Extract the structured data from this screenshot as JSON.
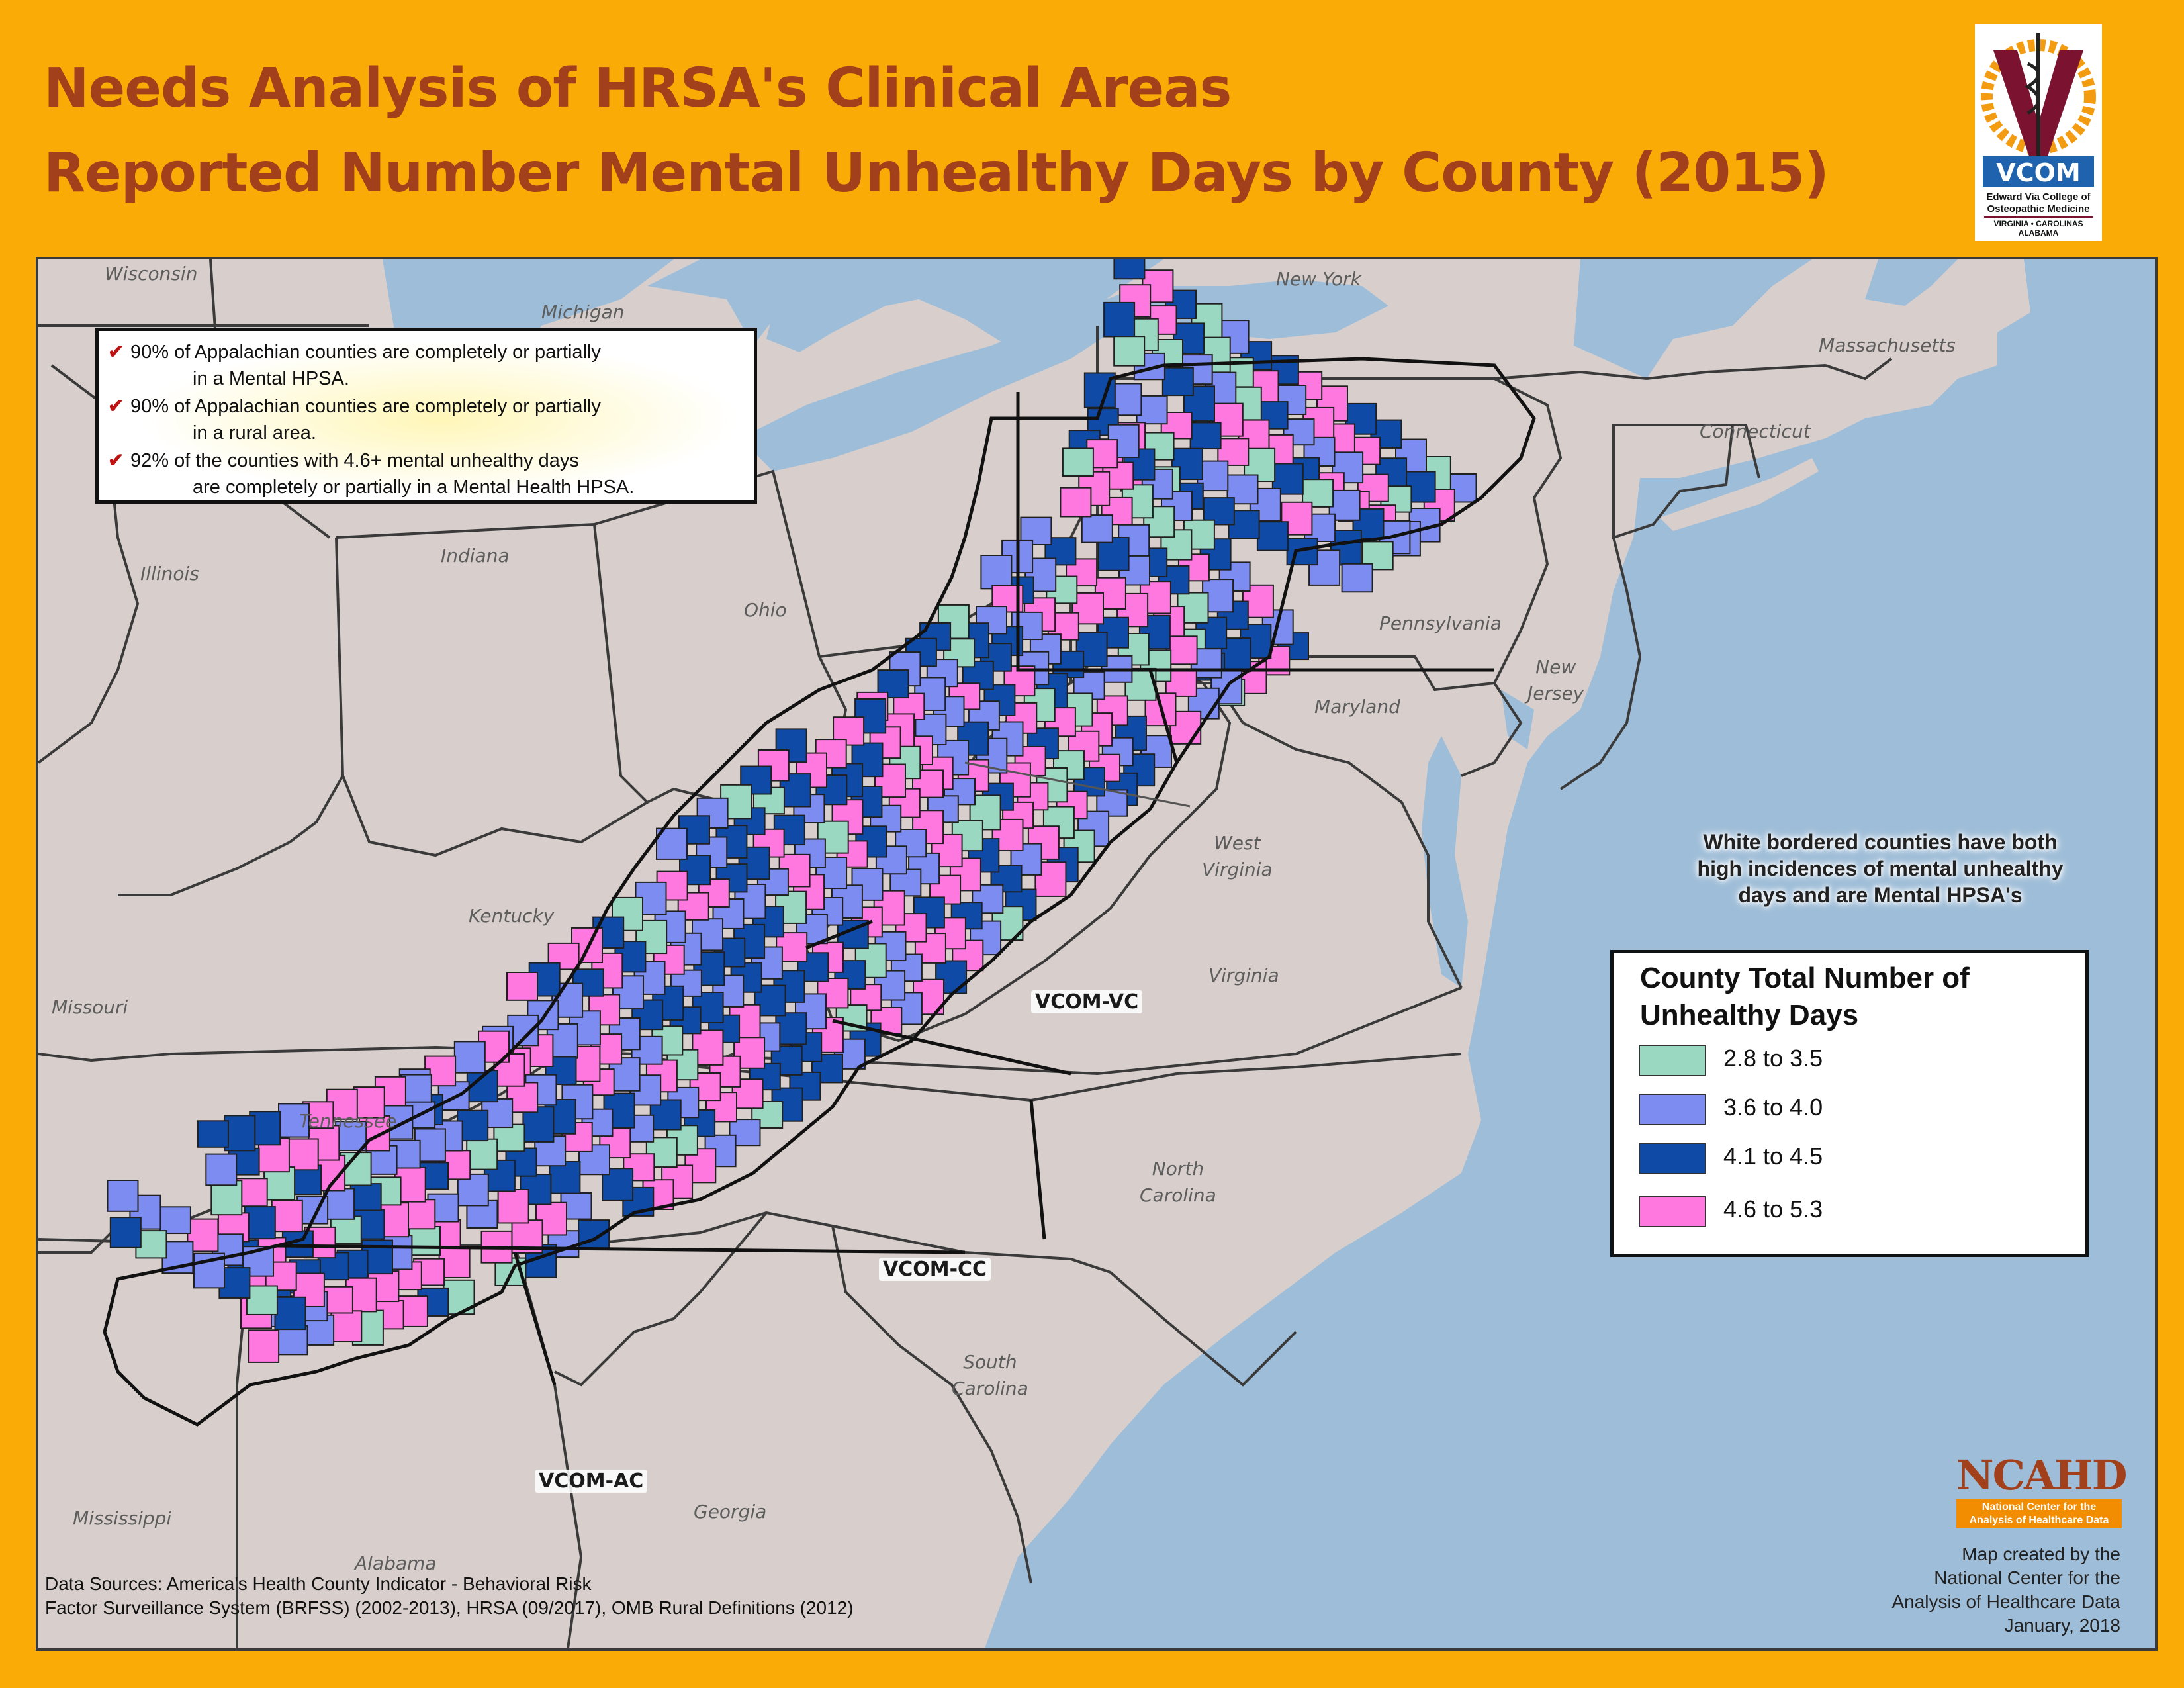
{
  "title": {
    "line1": "Needs Analysis of HRSA's Clinical Areas",
    "line2": "Reported Number Mental Unhealthy Days by County (2015)"
  },
  "logo": {
    "name": "VCOM",
    "lines": [
      "Edward Via College of",
      "Osteopathic Medicine",
      "VIRGINIA • CAROLINAS",
      "ALABAMA"
    ],
    "icon": "caduceus-icon",
    "colors": {
      "maroon": "#7a1230",
      "gold": "#f39c12",
      "blue": "#1f63ae"
    }
  },
  "facts": [
    {
      "line1": "90% of Appalachian counties are completely or partially",
      "line2": "in a Mental HPSA."
    },
    {
      "line1": "90% of Appalachian counties are completely or partially",
      "line2": "in a rural area."
    },
    {
      "line1": "92% of the counties with 4.6+ mental unhealthy days",
      "line2": "are completely or partially in a Mental Health HPSA."
    }
  ],
  "note": [
    "White bordered counties have both",
    "high incidences of mental unhealthy",
    "days and are Mental HPSA's"
  ],
  "legend": {
    "title": [
      "County Total Number of",
      "Unhealthy Days"
    ],
    "items": [
      {
        "label": "2.8 to 3.5",
        "color": "#9bd8c2"
      },
      {
        "label": "3.6 to 4.0",
        "color": "#7d8cf0"
      },
      {
        "label": "4.1 to 4.5",
        "color": "#0f4ba6"
      },
      {
        "label": "4.6 to 5.3",
        "color": "#ff78e0"
      }
    ]
  },
  "states": {
    "wisconsin": "Wisconsin",
    "michigan": "Michigan",
    "new_york": "New York",
    "massachusetts": "Massachusetts",
    "connecticut": "Connecticut",
    "illinois": "Illinois",
    "indiana": "Indiana",
    "ohio": "Ohio",
    "pennsylvania": "Pennsylvania",
    "new_jersey": [
      "New",
      "Jersey"
    ],
    "maryland": "Maryland",
    "west_virginia": [
      "West",
      "Virginia"
    ],
    "kentucky": "Kentucky",
    "virginia": "Virginia",
    "missouri": "Missouri",
    "tennessee": "Tennessee",
    "north_carolina": [
      "North",
      "Carolina"
    ],
    "south_carolina": [
      "South",
      "Carolina"
    ],
    "mississippi": "Mississippi",
    "alabama": "Alabama",
    "georgia": "Georgia"
  },
  "campuses": {
    "vc": "VCOM-VC",
    "cc": "VCOM-CC",
    "ac": "VCOM-AC"
  },
  "sources": [
    "Data Sources: America's Health County Indicator - Behavioral Risk",
    "Factor Surveillance System (BRFSS) (2002-2013), HRSA (09/2017), OMB Rural Definitions (2012)"
  ],
  "ncahd": {
    "name": "NCAHD",
    "line1": "National Center for the",
    "line2": "Analysis of Healthcare Data"
  },
  "credit": [
    "Map created by the",
    "National Center for the",
    "Analysis of Healthcare Data",
    "January, 2018"
  ],
  "colors": {
    "background": "#fbab05",
    "title": "#a2401c",
    "water": "#9ebdd8",
    "land": "#d8cfcc"
  }
}
